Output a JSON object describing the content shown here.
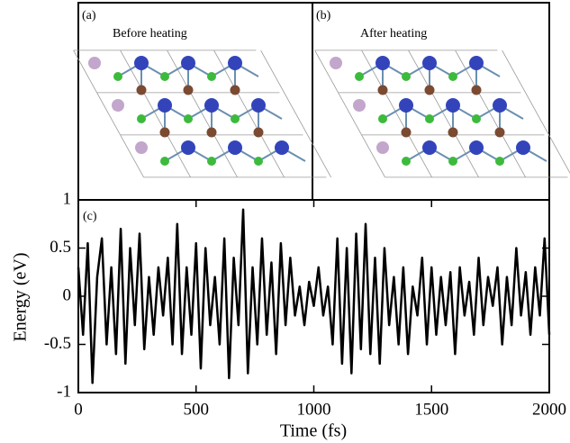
{
  "panels": [
    {
      "label": "(a)",
      "title": "Before heating"
    },
    {
      "label": "(b)",
      "title": "After heating"
    }
  ],
  "chart_data": {
    "type": "line",
    "label": "(c)",
    "xlabel": "Time (fs)",
    "ylabel": "Energy (eV)",
    "xlim": [
      0,
      2000
    ],
    "xticks": [
      0,
      500,
      1000,
      1500,
      2000
    ],
    "ylim": [
      -1,
      1
    ],
    "yticks": [
      -1,
      -0.5,
      0,
      0.5,
      1
    ],
    "x": [
      0,
      20,
      40,
      60,
      80,
      100,
      120,
      140,
      160,
      180,
      200,
      220,
      240,
      260,
      280,
      300,
      320,
      340,
      360,
      380,
      400,
      420,
      440,
      460,
      480,
      500,
      520,
      540,
      560,
      580,
      600,
      620,
      640,
      660,
      680,
      700,
      720,
      740,
      760,
      780,
      800,
      820,
      840,
      860,
      880,
      900,
      920,
      940,
      960,
      980,
      1000,
      1020,
      1040,
      1060,
      1080,
      1100,
      1120,
      1140,
      1160,
      1180,
      1200,
      1220,
      1240,
      1260,
      1280,
      1300,
      1320,
      1340,
      1360,
      1380,
      1400,
      1420,
      1440,
      1460,
      1480,
      1500,
      1520,
      1540,
      1560,
      1580,
      1600,
      1620,
      1640,
      1660,
      1680,
      1700,
      1720,
      1740,
      1760,
      1780,
      1800,
      1820,
      1840,
      1860,
      1880,
      1900,
      1920,
      1940,
      1960,
      1980,
      2000
    ],
    "series": [
      {
        "color": "#000000",
        "values": [
          0.3,
          -0.4,
          0.55,
          -0.9,
          0.2,
          0.6,
          -0.5,
          0.3,
          -0.6,
          0.7,
          -0.7,
          0.5,
          -0.3,
          0.65,
          -0.55,
          0.2,
          -0.4,
          0.3,
          -0.2,
          0.4,
          -0.5,
          0.75,
          -0.6,
          0.3,
          -0.4,
          0.55,
          -0.75,
          0.5,
          -0.3,
          0.2,
          -0.5,
          0.6,
          -0.85,
          0.4,
          -0.3,
          0.9,
          -0.8,
          0.3,
          -0.5,
          0.6,
          -0.4,
          0.35,
          -0.6,
          0.55,
          -0.3,
          0.4,
          -0.2,
          0.1,
          -0.3,
          0.15,
          -0.1,
          0.3,
          -0.2,
          0.1,
          -0.5,
          0.6,
          -0.7,
          0.5,
          -0.8,
          0.65,
          -0.55,
          0.75,
          -0.6,
          0.4,
          -0.7,
          0.5,
          -0.3,
          0.2,
          -0.5,
          0.3,
          -0.6,
          0.1,
          -0.2,
          0.4,
          -0.5,
          0.3,
          -0.4,
          0.2,
          -0.3,
          0.25,
          -0.6,
          0.3,
          -0.2,
          0.15,
          -0.4,
          0.4,
          -0.3,
          0.2,
          -0.1,
          0.3,
          -0.5,
          0.2,
          -0.3,
          0.5,
          -0.2,
          0.25,
          -0.4,
          0.3,
          -0.2,
          0.6,
          -0.4
        ]
      }
    ]
  }
}
